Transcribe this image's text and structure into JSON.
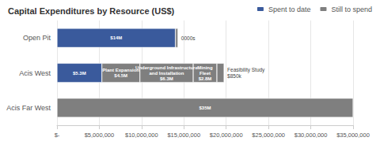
{
  "chart_data": {
    "type": "bar",
    "orientation": "horizontal",
    "stacked": true,
    "title": "Capital Expenditures by Resource (US$)",
    "categories": [
      "Open Pit",
      "Acis West",
      "Acis Far West"
    ],
    "series": [
      {
        "name": "Spent to date",
        "color": "#3A5A9C",
        "values": [
          14000000,
          5300000,
          null
        ],
        "value_labels": [
          "$14M",
          "$5.3M",
          null
        ]
      },
      {
        "name": "Still to spend",
        "color": "#7F7F7F",
        "values": [
          300000,
          4500000,
          35000000
        ],
        "value_labels": [
          null,
          "Plant Expansion\n$4.5M",
          "$35M"
        ]
      },
      {
        "name": "Still to spend",
        "color": "#7F7F7F",
        "values": [
          null,
          6300000,
          null
        ],
        "value_labels": [
          null,
          "Underground Infrastructure\nand Installation\n$6.3M",
          null
        ]
      },
      {
        "name": "Still to spend",
        "color": "#7F7F7F",
        "values": [
          null,
          2800000,
          null
        ],
        "value_labels": [
          null,
          "Mining\nFleet\n$2.8M",
          null
        ]
      },
      {
        "name": "Still to spend",
        "color": "#7F7F7F",
        "values": [
          null,
          850000,
          null
        ]
      }
    ],
    "annotations": [
      {
        "text": "0000s",
        "category": "Open Pit"
      },
      {
        "text": "Feasibility Study\n$850k",
        "category": "Acis West"
      }
    ],
    "xlim": [
      0,
      35000000
    ],
    "xticks": [
      {
        "value": 0,
        "label": "$-"
      },
      {
        "value": 5000000,
        "label": "$5,000,000"
      },
      {
        "value": 10000000,
        "label": "$10,000,000"
      },
      {
        "value": 15000000,
        "label": "$15,000,000"
      },
      {
        "value": 20000000,
        "label": "$20,000,000"
      },
      {
        "value": 25000000,
        "label": "$25,000,000"
      },
      {
        "value": 30000000,
        "label": "$30,000,000"
      },
      {
        "value": 35000000,
        "label": "$35,000,000"
      }
    ],
    "data_labels": true,
    "grid": true,
    "legend": "upper right"
  }
}
